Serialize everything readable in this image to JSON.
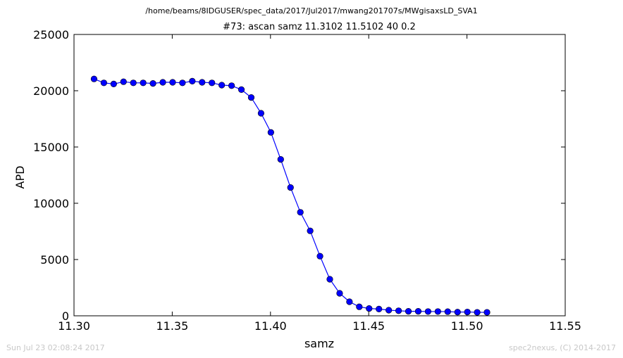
{
  "file_path": "/home/beams/8IDGUSER/spec_data/2017/Jul2017/mwang201707s/MWgisaxsLD_SVA1",
  "footer": {
    "timestamp": "Sun Jul 23 02:08:24 2017",
    "credit": "spec2nexus, (C) 2014-2017"
  },
  "chart_data": {
    "type": "line",
    "title": "#73: ascan  samz 11.3102 11.5102  40 0.2",
    "xlabel": "samz",
    "ylabel": "APD",
    "xlim": [
      11.3,
      11.55
    ],
    "ylim": [
      0,
      25000
    ],
    "xticks": [
      "11.30",
      "11.35",
      "11.40",
      "11.45",
      "11.50",
      "11.55"
    ],
    "yticks": [
      "0",
      "5000",
      "10000",
      "15000",
      "20000",
      "25000"
    ],
    "grid": false,
    "line_color": "#0000ff",
    "marker_color": "#0000ff",
    "series": [
      {
        "x": [
          11.3102,
          11.3152,
          11.3202,
          11.3252,
          11.3302,
          11.3352,
          11.3402,
          11.3452,
          11.3502,
          11.3552,
          11.3602,
          11.3652,
          11.3702,
          11.3752,
          11.3802,
          11.3852,
          11.3902,
          11.3952,
          11.4002,
          11.4052,
          11.4102,
          11.4152,
          11.4202,
          11.4252,
          11.4302,
          11.4352,
          11.4402,
          11.4452,
          11.4502,
          11.4552,
          11.4602,
          11.4652,
          11.4702,
          11.4752,
          11.4802,
          11.4852,
          11.4902,
          11.4952,
          11.5002,
          11.5052,
          11.5102
        ],
        "y": [
          21050,
          20700,
          20600,
          20800,
          20700,
          20700,
          20650,
          20750,
          20750,
          20700,
          20850,
          20750,
          20700,
          20500,
          20450,
          20100,
          19400,
          18000,
          16300,
          13900,
          11400,
          9200,
          7550,
          5300,
          3250,
          2000,
          1250,
          800,
          650,
          600,
          500,
          450,
          400,
          400,
          380,
          380,
          370,
          330,
          340,
          310,
          310
        ]
      }
    ]
  }
}
